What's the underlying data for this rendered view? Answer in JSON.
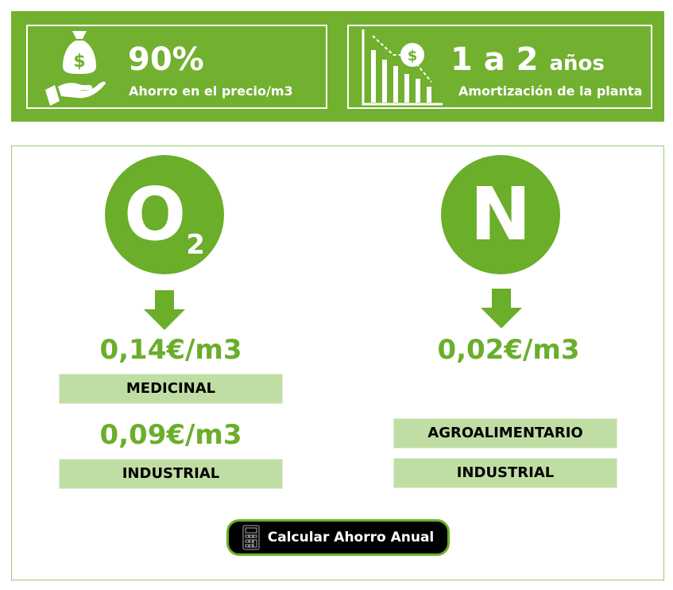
{
  "banner": {
    "stat1": {
      "value": "90%",
      "label": "Ahorro en el precio/m3",
      "icon": "money-bag-hand-icon"
    },
    "stat2": {
      "value": "1 a 2",
      "unit": "años",
      "label": "Amortización de la planta",
      "icon": "declining-chart-icon"
    }
  },
  "oxygen": {
    "symbol": "O",
    "subscript": "2",
    "prices": [
      {
        "value": "0,14€/m3",
        "label": "MEDICINAL"
      },
      {
        "value": "0,09€/m3",
        "label": "INDUSTRIAL"
      }
    ]
  },
  "nitrogen": {
    "symbol": "N",
    "price": "0,02€/m3",
    "labels": [
      "AGROALIMENTARIO",
      "INDUSTRIAL"
    ]
  },
  "button": {
    "label": "Calcular Ahorro Anual",
    "icon": "calculator-icon"
  },
  "colors": {
    "green": "#72b02f",
    "text_green": "#6aae2a",
    "tag_bg": "#c0dea4"
  }
}
